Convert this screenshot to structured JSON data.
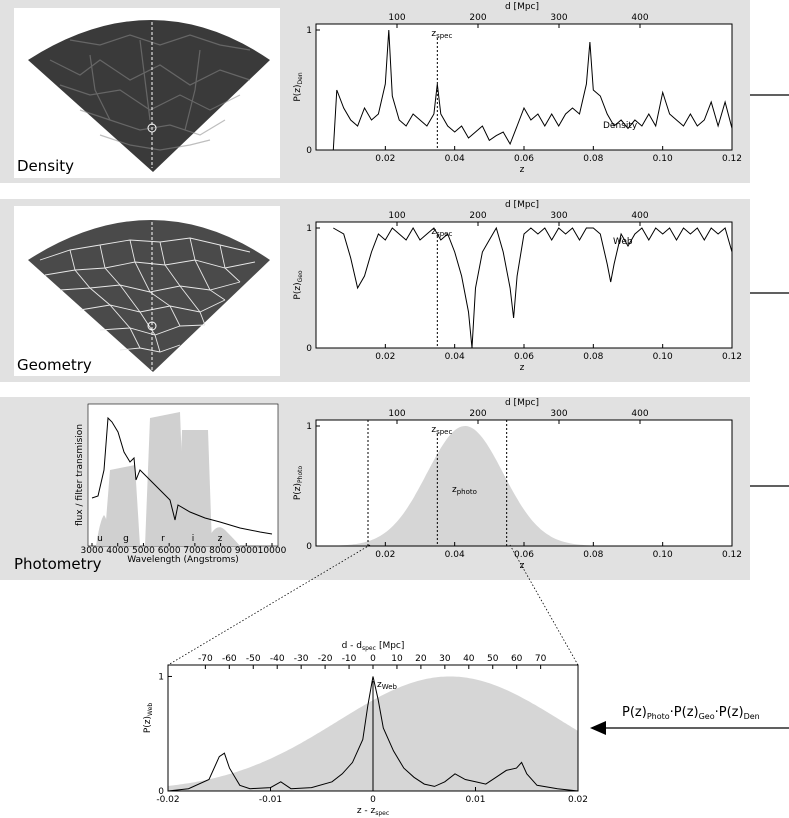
{
  "rows": [
    {
      "label": "Density",
      "curve_label": "Density",
      "ylabel": "P(z)",
      "ylabel_sub": "Den",
      "zspec_label": "z",
      "zspec_sub": "spec"
    },
    {
      "label": "Geometry",
      "curve_label": "Web",
      "ylabel": "P(z)",
      "ylabel_sub": "Geo",
      "zspec_label": "z",
      "zspec_sub": "spec"
    },
    {
      "label": "Photometry",
      "curve_label": "z",
      "curve_label_sub": "photo",
      "ylabel": "P(z)",
      "ylabel_sub": "Photo",
      "zspec_label": "z",
      "zspec_sub": "spec"
    }
  ],
  "top_axis": {
    "label": "d [Mpc]",
    "ticks": [
      "100",
      "200",
      "300",
      "400"
    ]
  },
  "bottom_axis": {
    "label": "z",
    "ticks": [
      "0.02",
      "0.04",
      "0.06",
      "0.08",
      "0.10",
      "0.12"
    ]
  },
  "y_ticks": [
    "0",
    "1"
  ],
  "spectrum_inset": {
    "xlabel": "Wavelength (Angstroms)",
    "ylabel": "flux / filter transmision",
    "xticks": [
      "3000",
      "4000",
      "5000",
      "6000",
      "7000",
      "8000",
      "9000",
      "10000"
    ],
    "filters": [
      "u",
      "g",
      "r",
      "i",
      "z"
    ]
  },
  "zoom": {
    "top_axis": {
      "label": "d - d",
      "label_sub": "spec",
      "label_unit": "[Mpc]",
      "ticks": [
        "-70",
        "-60",
        "-50",
        "-40",
        "-30",
        "-20",
        "-10",
        "0",
        "10",
        "20",
        "30",
        "40",
        "50",
        "60",
        "70"
      ]
    },
    "bottom_axis": {
      "label": "z - z",
      "label_sub": "spec",
      "ticks": [
        "-0.02",
        "-0.01",
        "0",
        "0.01",
        "0.02"
      ]
    },
    "ylabel": "P(z)",
    "ylabel_sub": "Web",
    "zweb_label": "z",
    "zweb_sub": "Web",
    "y_ticks": [
      "0",
      "1"
    ]
  },
  "formula": {
    "p1": "P(z)",
    "s1": "Photo",
    "p2": "P(z)",
    "s2": "Geo",
    "p3": "P(z)",
    "s3": "Den",
    "dot": "·"
  },
  "chart_data": [
    {
      "type": "line",
      "title": "",
      "xlabel": "z",
      "ylabel": "P(z)_Den",
      "xlim": [
        0.0,
        0.12
      ],
      "ylim": [
        0,
        1.05
      ],
      "x": [
        0.005,
        0.006,
        0.008,
        0.01,
        0.012,
        0.014,
        0.016,
        0.018,
        0.02,
        0.021,
        0.022,
        0.024,
        0.026,
        0.028,
        0.03,
        0.032,
        0.034,
        0.035,
        0.036,
        0.038,
        0.04,
        0.042,
        0.044,
        0.046,
        0.048,
        0.05,
        0.052,
        0.054,
        0.056,
        0.058,
        0.06,
        0.062,
        0.064,
        0.066,
        0.068,
        0.07,
        0.072,
        0.074,
        0.076,
        0.078,
        0.079,
        0.08,
        0.082,
        0.084,
        0.086,
        0.088,
        0.09,
        0.092,
        0.094,
        0.096,
        0.098,
        0.1,
        0.102,
        0.104,
        0.106,
        0.108,
        0.11,
        0.112,
        0.114,
        0.116,
        0.118,
        0.12
      ],
      "y": [
        0.0,
        0.5,
        0.35,
        0.25,
        0.2,
        0.35,
        0.25,
        0.3,
        0.55,
        1.0,
        0.45,
        0.25,
        0.2,
        0.3,
        0.25,
        0.2,
        0.3,
        0.55,
        0.3,
        0.2,
        0.15,
        0.2,
        0.1,
        0.15,
        0.2,
        0.08,
        0.12,
        0.15,
        0.05,
        0.2,
        0.35,
        0.25,
        0.3,
        0.2,
        0.3,
        0.2,
        0.3,
        0.35,
        0.3,
        0.55,
        0.9,
        0.5,
        0.45,
        0.3,
        0.2,
        0.25,
        0.18,
        0.25,
        0.2,
        0.3,
        0.2,
        0.48,
        0.3,
        0.25,
        0.2,
        0.3,
        0.2,
        0.25,
        0.4,
        0.2,
        0.4,
        0.18
      ],
      "zspec": 0.035
    },
    {
      "type": "line",
      "title": "",
      "xlabel": "z",
      "ylabel": "P(z)_Geo",
      "xlim": [
        0.0,
        0.12
      ],
      "ylim": [
        0,
        1.05
      ],
      "x": [
        0.005,
        0.008,
        0.01,
        0.012,
        0.014,
        0.016,
        0.018,
        0.02,
        0.022,
        0.024,
        0.026,
        0.028,
        0.03,
        0.032,
        0.034,
        0.036,
        0.038,
        0.04,
        0.042,
        0.044,
        0.045,
        0.046,
        0.048,
        0.05,
        0.052,
        0.054,
        0.056,
        0.057,
        0.058,
        0.06,
        0.062,
        0.064,
        0.066,
        0.068,
        0.07,
        0.072,
        0.074,
        0.076,
        0.078,
        0.08,
        0.082,
        0.084,
        0.085,
        0.086,
        0.088,
        0.09,
        0.092,
        0.094,
        0.096,
        0.098,
        0.1,
        0.102,
        0.104,
        0.106,
        0.108,
        0.11,
        0.112,
        0.114,
        0.116,
        0.118,
        0.12
      ],
      "y": [
        1.0,
        0.95,
        0.75,
        0.5,
        0.6,
        0.8,
        0.95,
        0.9,
        1.0,
        0.95,
        0.9,
        1.0,
        0.9,
        0.95,
        1.0,
        0.9,
        0.95,
        0.8,
        0.6,
        0.3,
        0.0,
        0.5,
        0.8,
        0.9,
        1.0,
        0.8,
        0.5,
        0.25,
        0.6,
        0.95,
        1.0,
        0.95,
        1.0,
        0.9,
        1.0,
        0.95,
        1.0,
        0.9,
        1.0,
        1.0,
        0.95,
        0.7,
        0.55,
        0.7,
        0.95,
        0.85,
        0.95,
        1.0,
        0.9,
        1.0,
        0.95,
        1.0,
        0.9,
        1.0,
        0.95,
        1.0,
        0.9,
        1.0,
        0.95,
        1.0,
        0.8
      ],
      "zspec": 0.035
    },
    {
      "type": "area",
      "title": "",
      "xlabel": "z",
      "ylabel": "P(z)_Photo",
      "xlim": [
        0.0,
        0.12
      ],
      "ylim": [
        0,
        1.05
      ],
      "gaussian": {
        "mean": 0.043,
        "sigma": 0.011,
        "peak": 1.0
      },
      "zspec": 0.035,
      "range_lines": [
        0.015,
        0.055
      ]
    },
    {
      "type": "line",
      "title": "",
      "xlabel": "z - z_spec",
      "ylabel": "P(z)_Web",
      "xlim": [
        -0.02,
        0.02
      ],
      "ylim": [
        0,
        1.1
      ],
      "x": [
        -0.02,
        -0.018,
        -0.016,
        -0.015,
        -0.0145,
        -0.014,
        -0.013,
        -0.012,
        -0.01,
        -0.009,
        -0.008,
        -0.006,
        -0.004,
        -0.003,
        -0.002,
        -0.001,
        -0.0005,
        0.0,
        0.0005,
        0.001,
        0.002,
        0.003,
        0.004,
        0.005,
        0.006,
        0.007,
        0.008,
        0.009,
        0.01,
        0.011,
        0.012,
        0.013,
        0.014,
        0.0145,
        0.015,
        0.016,
        0.018,
        0.02
      ],
      "y": [
        0.0,
        0.02,
        0.1,
        0.3,
        0.33,
        0.2,
        0.05,
        0.02,
        0.03,
        0.08,
        0.02,
        0.03,
        0.08,
        0.15,
        0.25,
        0.45,
        0.75,
        1.0,
        0.8,
        0.55,
        0.35,
        0.2,
        0.12,
        0.06,
        0.04,
        0.08,
        0.15,
        0.1,
        0.08,
        0.06,
        0.12,
        0.18,
        0.2,
        0.25,
        0.15,
        0.05,
        0.02,
        0.0
      ],
      "background_gaussian": {
        "mean": 0.0075,
        "sigma": 0.011,
        "peak": 1.0
      },
      "zweb": 0.0
    }
  ]
}
